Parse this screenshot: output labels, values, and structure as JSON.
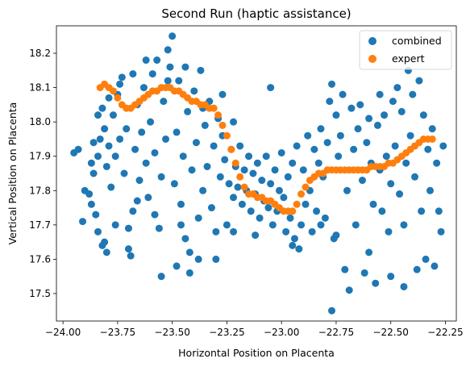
{
  "chart_data": {
    "type": "scatter",
    "title": "Second Run (haptic assistance)",
    "xlabel": "Horizontal Position on Placenta",
    "ylabel": "Vertical Position on Placenta",
    "xlim": [
      -24.03,
      -22.2
    ],
    "ylim": [
      17.42,
      18.28
    ],
    "xticks": [
      -24.0,
      -23.75,
      -23.5,
      -23.25,
      -23.0,
      -22.75,
      -22.5,
      -22.25
    ],
    "xtick_labels": [
      "−24.00",
      "−23.75",
      "−23.50",
      "−23.25",
      "−23.00",
      "−22.75",
      "−22.50",
      "−22.25"
    ],
    "yticks": [
      17.5,
      17.6,
      17.7,
      17.8,
      17.9,
      18.0,
      18.1,
      18.2
    ],
    "ytick_labels": [
      "17.5",
      "17.6",
      "17.7",
      "17.8",
      "17.9",
      "18.0",
      "18.1",
      "18.2"
    ],
    "grid": false,
    "legend_position": "top-right",
    "series": [
      {
        "name": "combined",
        "color": "#1f77b4",
        "points": [
          [
            -23.95,
            17.91
          ],
          [
            -23.93,
            17.92
          ],
          [
            -23.91,
            17.71
          ],
          [
            -23.88,
            17.79
          ],
          [
            -23.87,
            17.76
          ],
          [
            -23.86,
            17.85
          ],
          [
            -23.85,
            17.73
          ],
          [
            -23.84,
            17.68
          ],
          [
            -23.83,
            17.95
          ],
          [
            -23.82,
            17.64
          ],
          [
            -23.81,
            17.65
          ],
          [
            -23.8,
            17.62
          ],
          [
            -23.84,
            17.9
          ],
          [
            -23.82,
            18.04
          ],
          [
            -23.81,
            17.98
          ],
          [
            -23.8,
            17.87
          ],
          [
            -23.79,
            17.93
          ],
          [
            -23.78,
            17.81
          ],
          [
            -23.77,
            18.02
          ],
          [
            -23.76,
            17.9
          ],
          [
            -23.75,
            18.08
          ],
          [
            -23.74,
            17.95
          ],
          [
            -23.73,
            18.13
          ],
          [
            -23.72,
            17.85
          ],
          [
            -23.71,
            17.98
          ],
          [
            -23.7,
            17.63
          ],
          [
            -23.69,
            17.61
          ],
          [
            -23.68,
            17.74
          ],
          [
            -23.67,
            17.92
          ],
          [
            -23.66,
            18.05
          ],
          [
            -23.65,
            17.83
          ],
          [
            -23.64,
            17.97
          ],
          [
            -23.63,
            18.1
          ],
          [
            -23.62,
            17.88
          ],
          [
            -23.61,
            17.78
          ],
          [
            -23.6,
            18.0
          ],
          [
            -23.59,
            18.14
          ],
          [
            -23.58,
            17.91
          ],
          [
            -23.57,
            18.18
          ],
          [
            -23.56,
            17.69
          ],
          [
            -23.55,
            17.84
          ],
          [
            -23.54,
            18.06
          ],
          [
            -23.53,
            17.95
          ],
          [
            -23.52,
            18.21
          ],
          [
            -23.51,
            18.16
          ],
          [
            -23.5,
            18.25
          ],
          [
            -23.49,
            17.82
          ],
          [
            -23.48,
            17.97
          ],
          [
            -23.47,
            18.12
          ],
          [
            -23.46,
            17.76
          ],
          [
            -23.45,
            17.9
          ],
          [
            -23.44,
            17.66
          ],
          [
            -23.43,
            18.03
          ],
          [
            -23.42,
            17.62
          ],
          [
            -23.41,
            17.86
          ],
          [
            -23.4,
            18.09
          ],
          [
            -23.39,
            17.94
          ],
          [
            -23.38,
            17.72
          ],
          [
            -23.37,
            18.15
          ],
          [
            -23.36,
            17.8
          ],
          [
            -23.35,
            17.99
          ],
          [
            -23.34,
            17.87
          ],
          [
            -23.33,
            18.06
          ],
          [
            -23.32,
            17.75
          ],
          [
            -23.31,
            17.93
          ],
          [
            -23.3,
            17.68
          ],
          [
            -23.29,
            18.01
          ],
          [
            -23.28,
            17.84
          ],
          [
            -23.27,
            17.96
          ],
          [
            -23.26,
            17.89
          ],
          [
            -23.25,
            17.7
          ],
          [
            -23.24,
            17.82
          ],
          [
            -23.23,
            17.92
          ],
          [
            -23.22,
            17.78
          ],
          [
            -23.21,
            17.87
          ],
          [
            -23.2,
            17.81
          ],
          [
            -23.19,
            17.93
          ],
          [
            -23.18,
            17.76
          ],
          [
            -23.17,
            17.86
          ],
          [
            -23.16,
            17.8
          ],
          [
            -23.15,
            17.9
          ],
          [
            -23.14,
            17.74
          ],
          [
            -23.13,
            17.85
          ],
          [
            -23.12,
            17.79
          ],
          [
            -23.11,
            17.88
          ],
          [
            -23.1,
            17.72
          ],
          [
            -23.09,
            17.83
          ],
          [
            -23.08,
            17.77
          ],
          [
            -23.07,
            17.9
          ],
          [
            -23.06,
            17.75
          ],
          [
            -23.05,
            17.82
          ],
          [
            -23.04,
            17.7
          ],
          [
            -23.03,
            17.86
          ],
          [
            -23.02,
            17.74
          ],
          [
            -23.01,
            17.8
          ],
          [
            -23.0,
            17.91
          ],
          [
            -22.99,
            17.78
          ],
          [
            -22.98,
            17.68
          ],
          [
            -22.97,
            17.84
          ],
          [
            -22.96,
            17.72
          ],
          [
            -22.95,
            17.88
          ],
          [
            -22.94,
            17.66
          ],
          [
            -22.93,
            17.93
          ],
          [
            -22.92,
            17.63
          ],
          [
            -22.91,
            17.7
          ],
          [
            -22.9,
            17.86
          ],
          [
            -22.89,
            17.76
          ],
          [
            -22.88,
            17.96
          ],
          [
            -22.87,
            17.8
          ],
          [
            -22.86,
            17.68
          ],
          [
            -22.85,
            17.92
          ],
          [
            -22.84,
            17.74
          ],
          [
            -22.83,
            17.88
          ],
          [
            -22.82,
            17.98
          ],
          [
            -22.81,
            17.84
          ],
          [
            -22.8,
            17.72
          ],
          [
            -22.79,
            17.94
          ],
          [
            -22.78,
            18.06
          ],
          [
            -22.77,
            18.11
          ],
          [
            -22.76,
            17.66
          ],
          [
            -22.75,
            18.02
          ],
          [
            -22.74,
            17.9
          ],
          [
            -22.73,
            17.96
          ],
          [
            -22.72,
            18.08
          ],
          [
            -22.71,
            17.57
          ],
          [
            -22.7,
            17.8
          ],
          [
            -22.69,
            17.51
          ],
          [
            -22.68,
            18.04
          ],
          [
            -22.67,
            17.92
          ],
          [
            -22.66,
            17.7
          ],
          [
            -22.65,
            17.98
          ],
          [
            -22.64,
            18.05
          ],
          [
            -22.63,
            17.83
          ],
          [
            -22.62,
            17.56
          ],
          [
            -22.61,
            17.94
          ],
          [
            -22.6,
            18.01
          ],
          [
            -22.59,
            17.88
          ],
          [
            -22.58,
            17.76
          ],
          [
            -22.57,
            17.53
          ],
          [
            -22.56,
            17.99
          ],
          [
            -22.55,
            17.86
          ],
          [
            -22.54,
            17.74
          ],
          [
            -22.53,
            18.02
          ],
          [
            -22.52,
            17.9
          ],
          [
            -22.51,
            17.68
          ],
          [
            -22.5,
            17.82
          ],
          [
            -22.49,
            18.06
          ],
          [
            -22.48,
            17.93
          ],
          [
            -22.47,
            18.1
          ],
          [
            -22.46,
            17.79
          ],
          [
            -22.45,
            18.03
          ],
          [
            -22.44,
            17.7
          ],
          [
            -22.43,
            17.88
          ],
          [
            -22.42,
            18.15
          ],
          [
            -22.41,
            17.96
          ],
          [
            -22.4,
            18.08
          ],
          [
            -22.39,
            17.84
          ],
          [
            -22.38,
            17.57
          ],
          [
            -22.37,
            18.12
          ],
          [
            -22.36,
            17.74
          ],
          [
            -22.35,
            18.02
          ],
          [
            -22.34,
            17.6
          ],
          [
            -22.33,
            17.92
          ],
          [
            -22.32,
            17.8
          ],
          [
            -22.31,
            17.98
          ],
          [
            -22.3,
            17.58
          ],
          [
            -22.29,
            17.88
          ],
          [
            -22.28,
            17.74
          ],
          [
            -22.27,
            17.68
          ],
          [
            -22.26,
            17.93
          ],
          [
            -23.55,
            17.55
          ],
          [
            -22.77,
            17.45
          ],
          [
            -23.05,
            18.1
          ],
          [
            -22.55,
            18.08
          ],
          [
            -22.5,
            17.55
          ],
          [
            -22.44,
            17.52
          ],
          [
            -22.6,
            17.62
          ],
          [
            -23.48,
            17.58
          ],
          [
            -23.42,
            17.56
          ],
          [
            -23.7,
            17.69
          ],
          [
            -23.9,
            17.8
          ],
          [
            -23.76,
            17.7
          ],
          [
            -23.66,
            17.77
          ],
          [
            -23.58,
            17.73
          ],
          [
            -23.46,
            17.7
          ],
          [
            -23.38,
            17.6
          ],
          [
            -23.3,
            17.6
          ],
          [
            -23.22,
            17.68
          ],
          [
            -23.12,
            17.67
          ],
          [
            -22.95,
            17.64
          ],
          [
            -22.82,
            17.7
          ],
          [
            -22.75,
            17.67
          ],
          [
            -23.62,
            18.18
          ],
          [
            -23.52,
            18.12
          ],
          [
            -23.44,
            18.16
          ],
          [
            -23.36,
            18.04
          ],
          [
            -23.27,
            18.08
          ],
          [
            -23.22,
            18.0
          ],
          [
            -23.68,
            18.14
          ],
          [
            -23.74,
            18.11
          ],
          [
            -23.79,
            18.07
          ],
          [
            -23.84,
            18.02
          ],
          [
            -23.86,
            17.94
          ],
          [
            -23.87,
            17.88
          ]
        ]
      },
      {
        "name": "expert",
        "color": "#ff7f0e",
        "points": [
          [
            -23.83,
            18.1
          ],
          [
            -23.81,
            18.11
          ],
          [
            -23.79,
            18.1
          ],
          [
            -23.77,
            18.09
          ],
          [
            -23.75,
            18.07
          ],
          [
            -23.73,
            18.05
          ],
          [
            -23.71,
            18.04
          ],
          [
            -23.69,
            18.04
          ],
          [
            -23.67,
            18.05
          ],
          [
            -23.65,
            18.06
          ],
          [
            -23.63,
            18.07
          ],
          [
            -23.61,
            18.08
          ],
          [
            -23.59,
            18.09
          ],
          [
            -23.57,
            18.09
          ],
          [
            -23.55,
            18.1
          ],
          [
            -23.53,
            18.1
          ],
          [
            -23.51,
            18.1
          ],
          [
            -23.49,
            18.09
          ],
          [
            -23.47,
            18.09
          ],
          [
            -23.45,
            18.08
          ],
          [
            -23.43,
            18.07
          ],
          [
            -23.41,
            18.06
          ],
          [
            -23.39,
            18.06
          ],
          [
            -23.37,
            18.05
          ],
          [
            -23.35,
            18.05
          ],
          [
            -23.33,
            18.04
          ],
          [
            -23.31,
            18.04
          ],
          [
            -23.29,
            18.02
          ],
          [
            -23.27,
            17.99
          ],
          [
            -23.25,
            17.96
          ],
          [
            -23.23,
            17.92
          ],
          [
            -23.21,
            17.88
          ],
          [
            -23.19,
            17.84
          ],
          [
            -23.17,
            17.81
          ],
          [
            -23.15,
            17.79
          ],
          [
            -23.13,
            17.79
          ],
          [
            -23.11,
            17.78
          ],
          [
            -23.09,
            17.78
          ],
          [
            -23.07,
            17.77
          ],
          [
            -23.05,
            17.77
          ],
          [
            -23.03,
            17.76
          ],
          [
            -23.01,
            17.75
          ],
          [
            -22.99,
            17.74
          ],
          [
            -22.97,
            17.74
          ],
          [
            -22.95,
            17.74
          ],
          [
            -22.93,
            17.76
          ],
          [
            -22.91,
            17.79
          ],
          [
            -22.89,
            17.81
          ],
          [
            -22.87,
            17.83
          ],
          [
            -22.85,
            17.84
          ],
          [
            -22.83,
            17.85
          ],
          [
            -22.81,
            17.85
          ],
          [
            -22.79,
            17.86
          ],
          [
            -22.77,
            17.86
          ],
          [
            -22.75,
            17.86
          ],
          [
            -22.73,
            17.86
          ],
          [
            -22.71,
            17.86
          ],
          [
            -22.69,
            17.86
          ],
          [
            -22.67,
            17.86
          ],
          [
            -22.65,
            17.86
          ],
          [
            -22.63,
            17.86
          ],
          [
            -22.61,
            17.86
          ],
          [
            -22.59,
            17.87
          ],
          [
            -22.57,
            17.87
          ],
          [
            -22.55,
            17.87
          ],
          [
            -22.53,
            17.87
          ],
          [
            -22.51,
            17.88
          ],
          [
            -22.49,
            17.88
          ],
          [
            -22.47,
            17.89
          ],
          [
            -22.45,
            17.9
          ],
          [
            -22.43,
            17.91
          ],
          [
            -22.41,
            17.92
          ],
          [
            -22.39,
            17.93
          ],
          [
            -22.37,
            17.94
          ],
          [
            -22.35,
            17.95
          ],
          [
            -22.33,
            17.95
          ],
          [
            -22.31,
            17.95
          ]
        ]
      }
    ]
  }
}
